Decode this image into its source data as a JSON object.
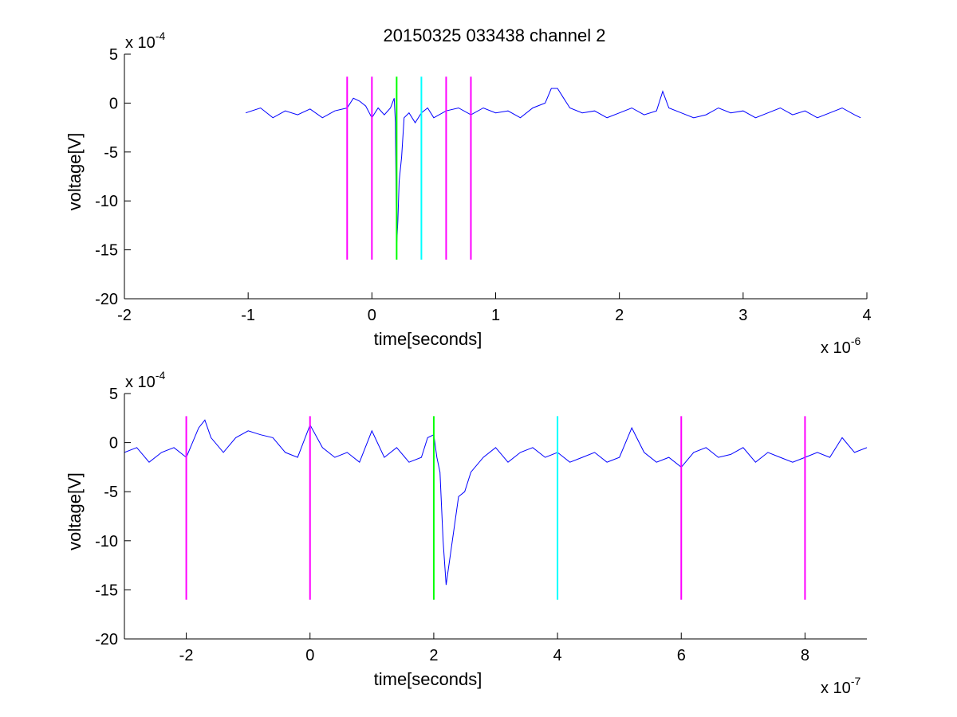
{
  "title": "20150325 033438 channel 2",
  "chart_data": [
    {
      "type": "line",
      "title": "20150325 033438 channel 2",
      "xlabel": "time[seconds]",
      "ylabel": "voltage[V]",
      "x_scale_label": "x 10",
      "x_scale_exp": "-6",
      "y_scale_label": "x 10",
      "y_scale_exp": "-4",
      "xlim": [
        -2,
        4
      ],
      "ylim": [
        -20,
        5
      ],
      "xticks": [
        -2,
        -1,
        0,
        1,
        2,
        3,
        4
      ],
      "yticks": [
        -20,
        -15,
        -10,
        -5,
        0,
        5
      ],
      "grid": false,
      "series": [
        {
          "color": "#0000ff",
          "x": [
            -1.02,
            -0.9,
            -0.8,
            -0.7,
            -0.6,
            -0.5,
            -0.4,
            -0.3,
            -0.2,
            -0.15,
            -0.1,
            -0.05,
            0.0,
            0.05,
            0.1,
            0.15,
            0.18,
            0.19,
            0.2,
            0.21,
            0.22,
            0.24,
            0.26,
            0.3,
            0.35,
            0.4,
            0.45,
            0.5,
            0.6,
            0.7,
            0.8,
            0.9,
            1.0,
            1.1,
            1.2,
            1.3,
            1.4,
            1.45,
            1.5,
            1.55,
            1.6,
            1.7,
            1.8,
            1.9,
            2.0,
            2.1,
            2.2,
            2.3,
            2.35,
            2.4,
            2.5,
            2.6,
            2.7,
            2.8,
            2.9,
            3.0,
            3.1,
            3.2,
            3.3,
            3.4,
            3.5,
            3.6,
            3.7,
            3.8,
            3.9,
            3.95
          ],
          "y": [
            -1,
            -0.5,
            -1.5,
            -0.8,
            -1.2,
            -0.6,
            -1.5,
            -0.8,
            -0.5,
            0.5,
            0.2,
            -0.3,
            -1.5,
            -0.5,
            -1.2,
            -0.5,
            0.5,
            -2,
            -14.5,
            -12,
            -8,
            -5.5,
            -1.5,
            -1,
            -2,
            -1,
            -0.5,
            -1.5,
            -0.8,
            -0.5,
            -1.2,
            -0.5,
            -1,
            -0.8,
            -1.5,
            -0.5,
            0,
            1.5,
            1.5,
            0.5,
            -0.5,
            -1,
            -0.8,
            -1.5,
            -1,
            -0.5,
            -1.2,
            -0.8,
            1.2,
            -0.5,
            -1,
            -1.5,
            -1.2,
            -0.5,
            -1,
            -0.8,
            -1.5,
            -1,
            -0.5,
            -1.2,
            -0.8,
            -1.5,
            -1,
            -0.5,
            -1.2,
            -1.5
          ]
        }
      ],
      "markers": [
        {
          "x": -0.2,
          "color": "#ff00ff"
        },
        {
          "x": 0.0,
          "color": "#ff00ff"
        },
        {
          "x": 0.2,
          "color": "#00ff00"
        },
        {
          "x": 0.4,
          "color": "#00ffff"
        },
        {
          "x": 0.6,
          "color": "#ff00ff"
        },
        {
          "x": 0.8,
          "color": "#ff00ff"
        }
      ],
      "marker_range": [
        -16,
        2.7
      ]
    },
    {
      "type": "line",
      "xlabel": "time[seconds]",
      "ylabel": "voltage[V]",
      "x_scale_label": "x 10",
      "x_scale_exp": "-7",
      "y_scale_label": "x 10",
      "y_scale_exp": "-4",
      "xlim": [
        -3,
        9
      ],
      "ylim": [
        -20,
        5
      ],
      "xticks": [
        -2,
        0,
        2,
        4,
        6,
        8
      ],
      "yticks": [
        -20,
        -15,
        -10,
        -5,
        0,
        5
      ],
      "grid": false,
      "series": [
        {
          "color": "#0000ff",
          "x": [
            -3,
            -2.8,
            -2.6,
            -2.4,
            -2.2,
            -2.0,
            -1.8,
            -1.7,
            -1.6,
            -1.4,
            -1.2,
            -1.0,
            -0.8,
            -0.6,
            -0.4,
            -0.2,
            0.0,
            0.2,
            0.4,
            0.6,
            0.8,
            1.0,
            1.2,
            1.4,
            1.6,
            1.8,
            1.9,
            2.0,
            2.05,
            2.1,
            2.15,
            2.2,
            2.3,
            2.4,
            2.5,
            2.6,
            2.8,
            3.0,
            3.2,
            3.4,
            3.6,
            3.8,
            4.0,
            4.2,
            4.4,
            4.6,
            4.8,
            5.0,
            5.2,
            5.4,
            5.6,
            5.8,
            6.0,
            6.2,
            6.4,
            6.6,
            6.8,
            7.0,
            7.2,
            7.4,
            7.6,
            7.8,
            8.0,
            8.2,
            8.4,
            8.6,
            8.8,
            9.0
          ],
          "y": [
            -1,
            -0.5,
            -2,
            -1,
            -0.5,
            -1.5,
            1.5,
            2.3,
            0.5,
            -1,
            0.5,
            1.2,
            0.8,
            0.5,
            -1,
            -1.5,
            1.8,
            -0.5,
            -1.5,
            -1,
            -2,
            1.2,
            -1.5,
            -0.5,
            -2,
            -1.5,
            0.5,
            0.8,
            -1.5,
            -3,
            -10,
            -14.5,
            -10,
            -5.5,
            -5,
            -3,
            -1.5,
            -0.5,
            -2,
            -1,
            -0.5,
            -1.5,
            -1,
            -2,
            -1.5,
            -1,
            -2,
            -1.5,
            1.5,
            -1,
            -2,
            -1.5,
            -2.5,
            -1,
            -0.5,
            -1.5,
            -1.2,
            -0.5,
            -2,
            -1,
            -1.5,
            -2,
            -1.5,
            -1,
            -1.5,
            0.5,
            -1,
            -0.5
          ]
        }
      ],
      "markers": [
        {
          "x": -2,
          "color": "#ff00ff"
        },
        {
          "x": 0,
          "color": "#ff00ff"
        },
        {
          "x": 2,
          "color": "#00ff00"
        },
        {
          "x": 4,
          "color": "#00ffff"
        },
        {
          "x": 6,
          "color": "#ff00ff"
        },
        {
          "x": 8,
          "color": "#ff00ff"
        }
      ],
      "marker_range": [
        -16,
        2.7
      ]
    }
  ]
}
